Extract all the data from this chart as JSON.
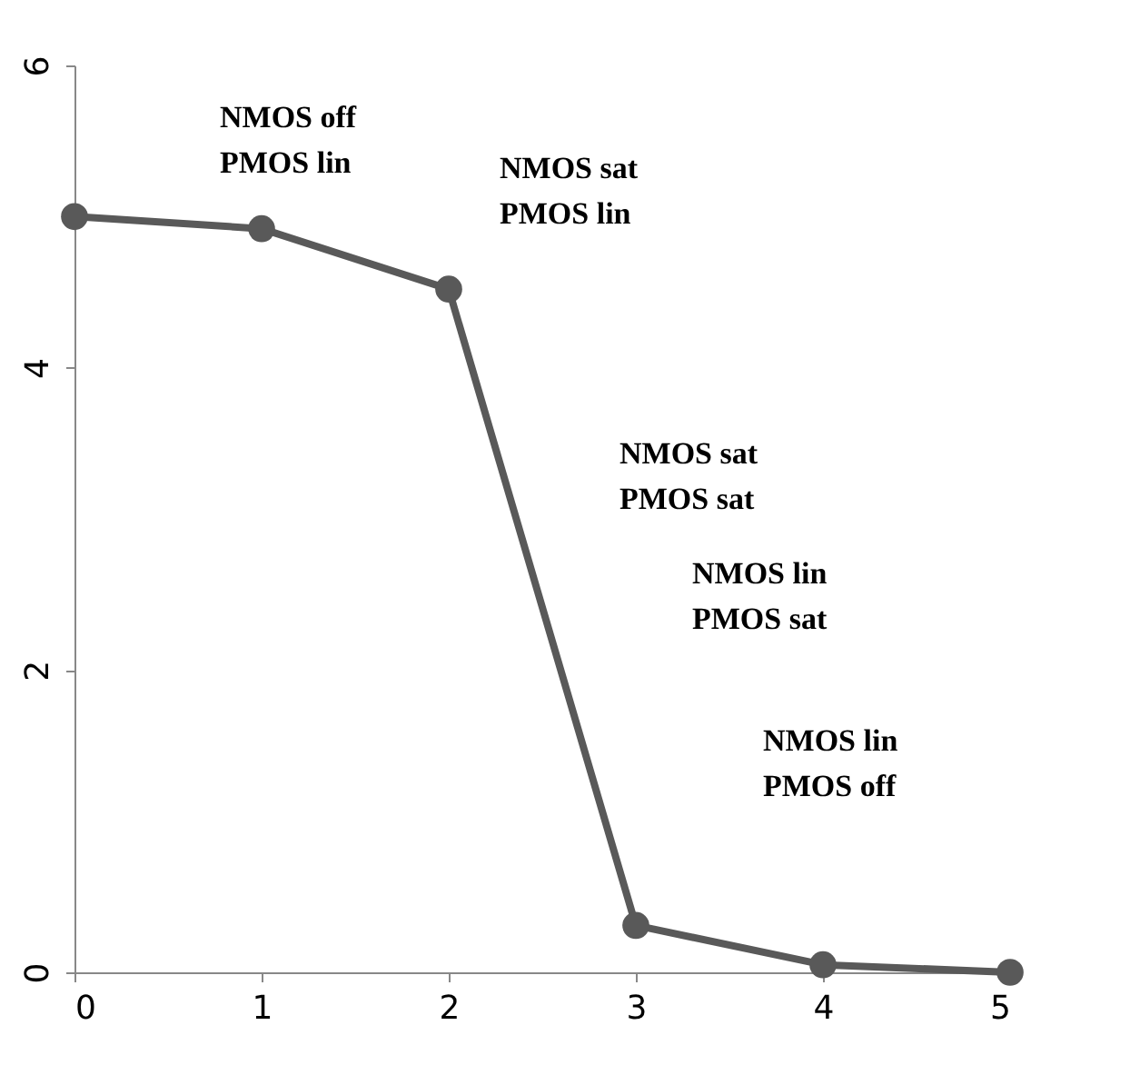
{
  "chart_data": {
    "type": "line",
    "x": [
      0,
      1,
      2,
      3,
      4,
      5
    ],
    "series": [
      {
        "color": "#595959",
        "values": [
          5,
          4.92,
          4.52,
          0.31,
          0.05,
          0
        ]
      }
    ],
    "xlim": [
      0,
      5
    ],
    "xticks": [
      0,
      1,
      2,
      3,
      4,
      5
    ],
    "ylim": [
      0,
      6
    ],
    "yticks": [
      0,
      2,
      4,
      6
    ],
    "grid": false,
    "marker": "circle",
    "line_style": "solid",
    "annotations": [
      "NMOS off\nPMOS lin",
      "NMOS sat\nPMOS lin",
      "NMOS sat\nPMOS sat",
      "NMOS lin\nPMOS sat",
      "NMOS lin\nPMOS off"
    ]
  }
}
